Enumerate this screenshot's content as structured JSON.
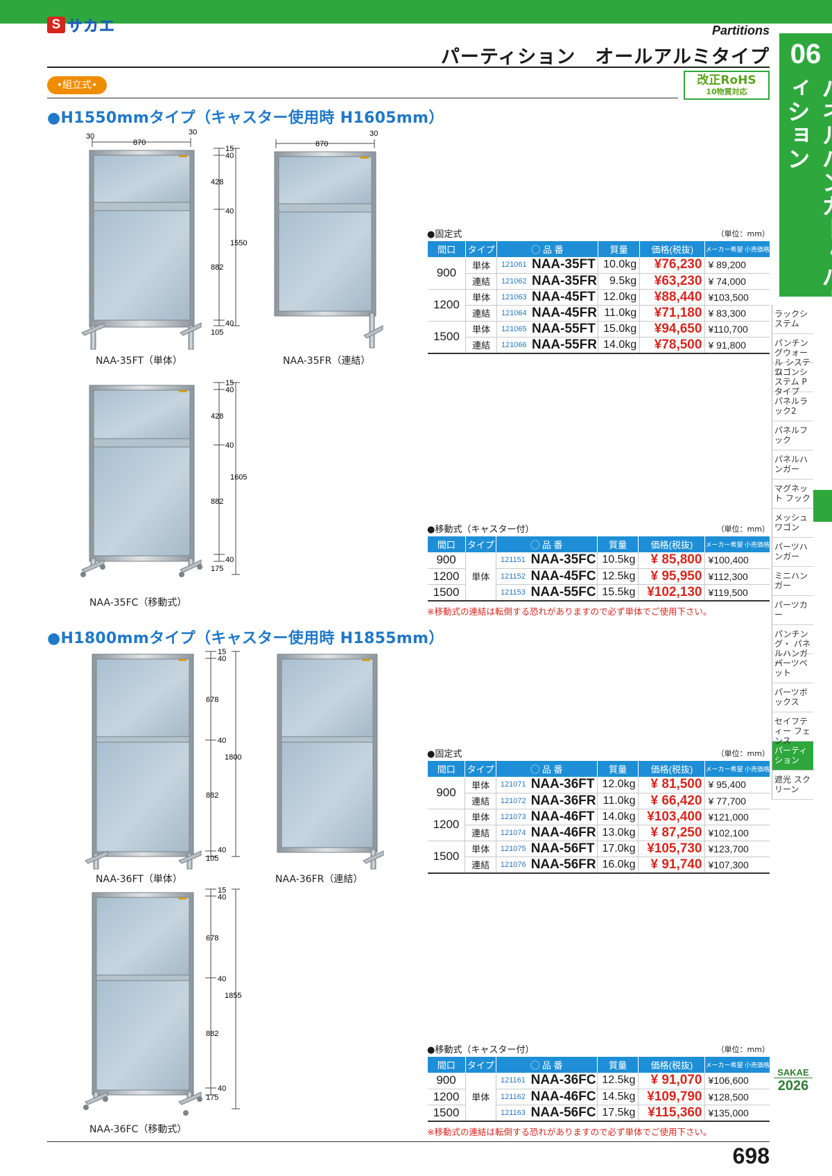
{
  "brand": {
    "logo_s": "S",
    "logo_text": "サカエ"
  },
  "header": {
    "eng_title": "Partitions",
    "title": "パーティション　オールアルミタイプ",
    "assembly_tag": "•組立式•",
    "rohs_line1": "改正RoHS",
    "rohs_line2": "10物質対応"
  },
  "sidetab": {
    "number": "06",
    "label": "パネルハンガー・パーティション"
  },
  "sidenav": [
    "ラックシステム",
    "パンチングウォール システム",
    "ワゴンシステム Pタイプ",
    "パネルラック2",
    "パネルフック",
    "パネルハンガー",
    "マグネット フック",
    "メッシュワゴン",
    "パーツハンガー",
    "ミニハンガー",
    "パーツカー",
    "パンチング・ パネルハンガー",
    "パーツペット",
    "パーツボックス",
    "セイフティー フェンス",
    "パーティション",
    "遮光 スクリーン"
  ],
  "sidenav_active": "パーティション",
  "sections": {
    "h1550": "●H1550mmタイプ（キャスター使用時 H1605mm）",
    "h1800": "●H1800mmタイプ（キャスター使用時 H1855mm）"
  },
  "drawings": {
    "d1": {
      "caption": "NAA-35FT（単体）",
      "w": "870",
      "l": "30",
      "r": "30",
      "total": "1550",
      "dims": [
        "15",
        "40",
        "428",
        "40",
        "882",
        "40",
        "105"
      ]
    },
    "d2": {
      "caption": "NAA-35FR（連結）",
      "w": "870",
      "r": "30"
    },
    "d3": {
      "caption": "NAA-35FC（移動式）",
      "total": "1605",
      "dims": [
        "15",
        "40",
        "428",
        "40",
        "882",
        "40",
        "175"
      ]
    },
    "d4": {
      "caption": "NAA-36FT（単体）",
      "total": "1800",
      "dims": [
        "15",
        "40",
        "678",
        "40",
        "882",
        "40",
        "105"
      ]
    },
    "d5": {
      "caption": "NAA-36FR（連結）"
    },
    "d6": {
      "caption": "NAA-36FC（移動式）",
      "total": "1855",
      "dims": [
        "15",
        "40",
        "678",
        "40",
        "882",
        "40",
        "175"
      ]
    }
  },
  "table_headers": {
    "width": "間口",
    "type": "タイプ",
    "part": "◯ 品 番",
    "mass": "質量",
    "price": "価格(税抜)",
    "maker": "メーカー希望 小売価格"
  },
  "tables": {
    "t1": {
      "title": "●固定式",
      "unit": "（単位：mm）",
      "rows": [
        {
          "w": "900",
          "t": "単体",
          "code": "121061",
          "model": "NAA-35FT",
          "mass": "10.0kg",
          "price": "¥76,230",
          "maker": "¥  89,200"
        },
        {
          "w": "",
          "t": "連結",
          "code": "121062",
          "model": "NAA-35FR",
          "mass": "9.5kg",
          "price": "¥63,230",
          "maker": "¥  74,000"
        },
        {
          "w": "1200",
          "t": "単体",
          "code": "121063",
          "model": "NAA-45FT",
          "mass": "12.0kg",
          "price": "¥88,440",
          "maker": "¥103,500"
        },
        {
          "w": "",
          "t": "連結",
          "code": "121064",
          "model": "NAA-45FR",
          "mass": "11.0kg",
          "price": "¥71,180",
          "maker": "¥  83,300"
        },
        {
          "w": "1500",
          "t": "単体",
          "code": "121065",
          "model": "NAA-55FT",
          "mass": "15.0kg",
          "price": "¥94,650",
          "maker": "¥110,700"
        },
        {
          "w": "",
          "t": "連結",
          "code": "121066",
          "model": "NAA-55FR",
          "mass": "14.0kg",
          "price": "¥78,500",
          "maker": "¥  91,800"
        }
      ]
    },
    "t2": {
      "title": "●移動式（キャスター付）",
      "unit": "（単位：mm）",
      "type": "単体",
      "rows": [
        {
          "w": "900",
          "code": "121151",
          "model": "NAA-35FC",
          "mass": "10.5kg",
          "price": "¥  85,800",
          "maker": "¥100,400"
        },
        {
          "w": "1200",
          "code": "121152",
          "model": "NAA-45FC",
          "mass": "12.5kg",
          "price": "¥  95,950",
          "maker": "¥112,300"
        },
        {
          "w": "1500",
          "code": "121153",
          "model": "NAA-55FC",
          "mass": "15.5kg",
          "price": "¥102,130",
          "maker": "¥119,500"
        }
      ],
      "note": "※移動式の連結は転倒する恐れがありますので必ず単体でご使用下さい。"
    },
    "t3": {
      "title": "●固定式",
      "unit": "（単位：mm）",
      "rows": [
        {
          "w": "900",
          "t": "単体",
          "code": "121071",
          "model": "NAA-36FT",
          "mass": "12.0kg",
          "price": "¥  81,500",
          "maker": "¥  95,400"
        },
        {
          "w": "",
          "t": "連結",
          "code": "121072",
          "model": "NAA-36FR",
          "mass": "11.0kg",
          "price": "¥  66,420",
          "maker": "¥  77,700"
        },
        {
          "w": "1200",
          "t": "単体",
          "code": "121073",
          "model": "NAA-46FT",
          "mass": "14.0kg",
          "price": "¥103,400",
          "maker": "¥121,000"
        },
        {
          "w": "",
          "t": "連結",
          "code": "121074",
          "model": "NAA-46FR",
          "mass": "13.0kg",
          "price": "¥  87,250",
          "maker": "¥102,100"
        },
        {
          "w": "1500",
          "t": "単体",
          "code": "121075",
          "model": "NAA-56FT",
          "mass": "17.0kg",
          "price": "¥105,730",
          "maker": "¥123,700"
        },
        {
          "w": "",
          "t": "連結",
          "code": "121076",
          "model": "NAA-56FR",
          "mass": "16.0kg",
          "price": "¥  91,740",
          "maker": "¥107,300"
        }
      ]
    },
    "t4": {
      "title": "●移動式（キャスター付）",
      "unit": "（単位：mm）",
      "type": "単体",
      "rows": [
        {
          "w": "900",
          "code": "121161",
          "model": "NAA-36FC",
          "mass": "12.5kg",
          "price": "¥  91,070",
          "maker": "¥106,600"
        },
        {
          "w": "1200",
          "code": "121162",
          "model": "NAA-46FC",
          "mass": "14.5kg",
          "price": "¥109,790",
          "maker": "¥128,500"
        },
        {
          "w": "1500",
          "code": "121163",
          "model": "NAA-56FC",
          "mass": "17.5kg",
          "price": "¥115,360",
          "maker": "¥135,000"
        }
      ],
      "note": "※移動式の連結は転倒する恐れがありますので必ず単体でご使用下さい。"
    }
  },
  "footer": {
    "sakae": "SAKAE",
    "year": "2026",
    "page": "698"
  }
}
